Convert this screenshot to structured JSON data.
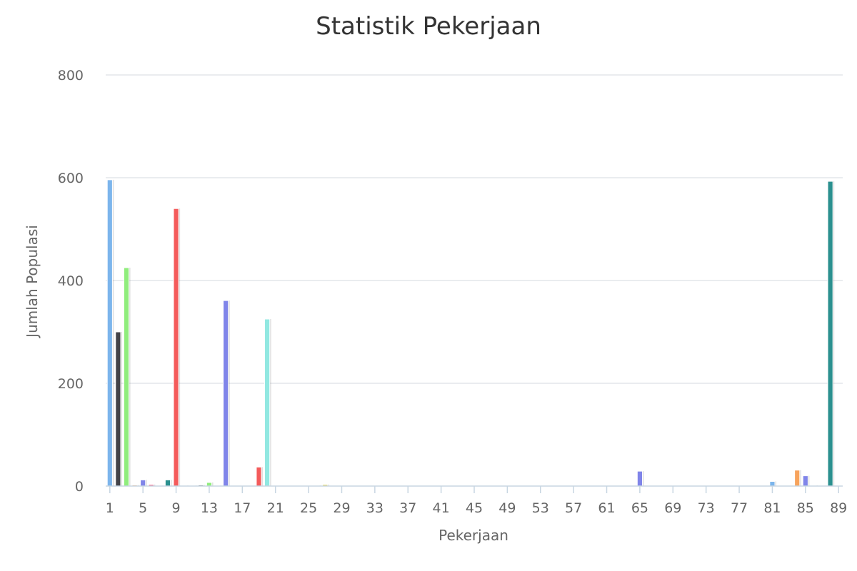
{
  "chart_data": {
    "type": "bar",
    "title": "Statistik Pekerjaan",
    "xlabel": "Pekerjaan",
    "ylabel": "Jumlah Populasi",
    "ylim": [
      0,
      800
    ],
    "yticks": [
      0,
      200,
      400,
      600,
      800
    ],
    "xticks": [
      1,
      5,
      9,
      13,
      17,
      21,
      25,
      29,
      33,
      37,
      41,
      45,
      49,
      53,
      57,
      61,
      65,
      69,
      73,
      77,
      81,
      85,
      89
    ],
    "x_range": [
      1,
      89
    ],
    "grid": true,
    "legend": "none",
    "bars": [
      {
        "x": 1,
        "value": 596,
        "color": "#7cb5ec"
      },
      {
        "x": 2,
        "value": 300,
        "color": "#434348"
      },
      {
        "x": 3,
        "value": 425,
        "color": "#90ed7d"
      },
      {
        "x": 4,
        "value": 2,
        "color": "#f7a35c"
      },
      {
        "x": 5,
        "value": 12,
        "color": "#8085e9"
      },
      {
        "x": 6,
        "value": 3,
        "color": "#f15c80"
      },
      {
        "x": 7,
        "value": 1,
        "color": "#e4d354"
      },
      {
        "x": 8,
        "value": 12,
        "color": "#2b908f"
      },
      {
        "x": 9,
        "value": 540,
        "color": "#f45b5b"
      },
      {
        "x": 10,
        "value": 1,
        "color": "#91e8e1"
      },
      {
        "x": 11,
        "value": 1,
        "color": "#7cb5ec"
      },
      {
        "x": 12,
        "value": 2,
        "color": "#434348"
      },
      {
        "x": 13,
        "value": 7,
        "color": "#90ed7d"
      },
      {
        "x": 14,
        "value": 1,
        "color": "#f7a35c"
      },
      {
        "x": 15,
        "value": 361,
        "color": "#8085e9"
      },
      {
        "x": 19,
        "value": 37,
        "color": "#f45b5b"
      },
      {
        "x": 20,
        "value": 325,
        "color": "#91e8e1"
      },
      {
        "x": 26,
        "value": 1,
        "color": "#7cb5ec"
      },
      {
        "x": 27,
        "value": 3,
        "color": "#e4d354"
      },
      {
        "x": 65,
        "value": 29,
        "color": "#8085e9"
      },
      {
        "x": 81,
        "value": 9,
        "color": "#7cb5ec"
      },
      {
        "x": 84,
        "value": 31,
        "color": "#f7a35c"
      },
      {
        "x": 85,
        "value": 20,
        "color": "#8085e9"
      },
      {
        "x": 86,
        "value": 1,
        "color": "#f15c80"
      },
      {
        "x": 88,
        "value": 593,
        "color": "#2b908f"
      }
    ]
  }
}
